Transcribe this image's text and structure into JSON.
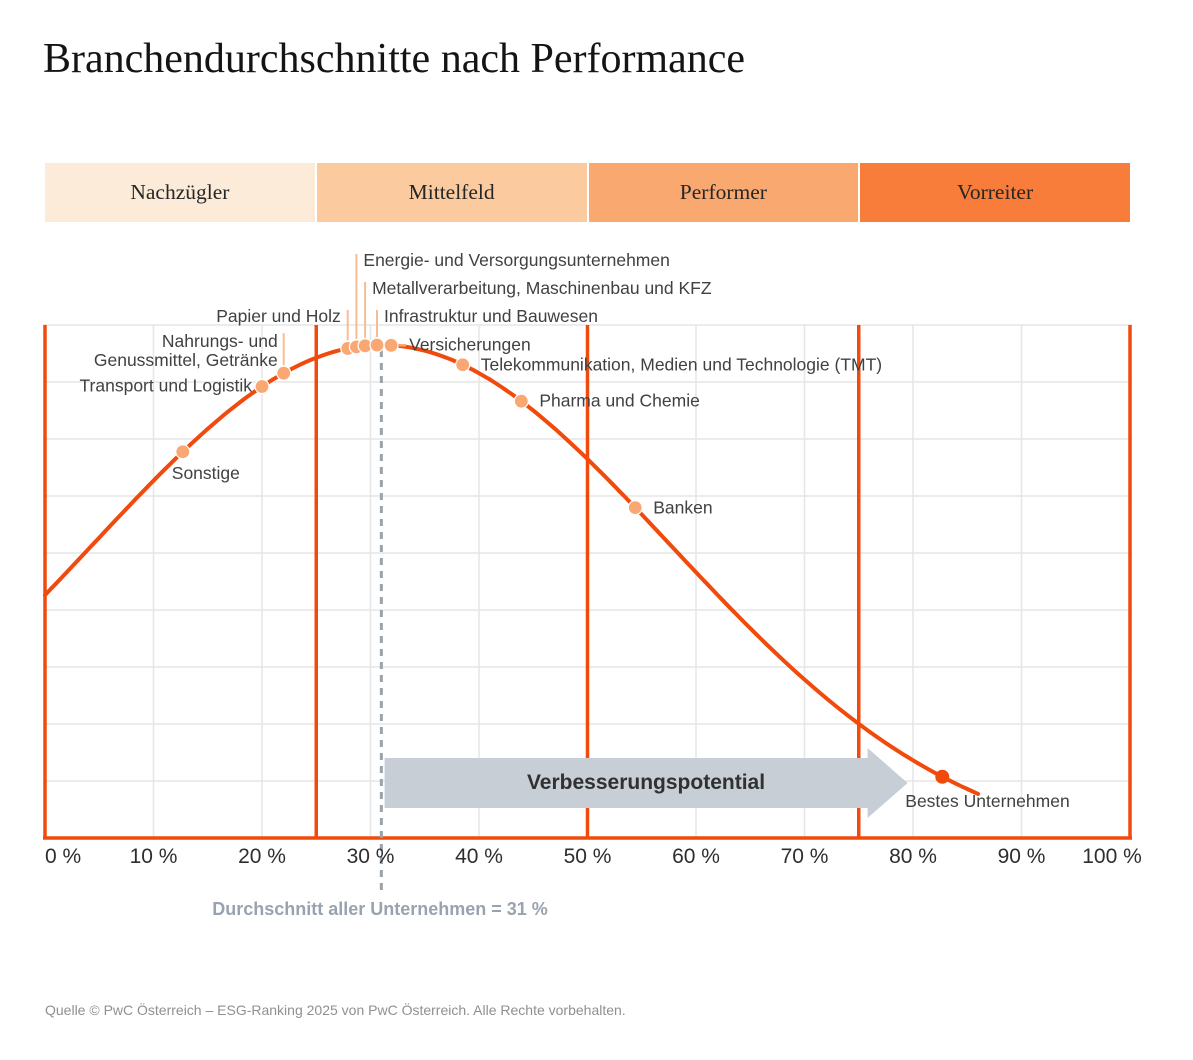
{
  "title": "Branchendurchschnitte nach Performance",
  "source": "Quelle © PwC Österreich – ESG-Ranking 2025 von PwC Österreich. Alle Rechte vorbehalten.",
  "bands": [
    {
      "label": "Nachzügler",
      "color": "#fdebd9",
      "from_pct": 0,
      "to_pct": 25
    },
    {
      "label": "Mittelfeld",
      "color": "#fbcb9f",
      "from_pct": 25,
      "to_pct": 50
    },
    {
      "label": "Performer",
      "color": "#f9a96f",
      "from_pct": 50,
      "to_pct": 75
    },
    {
      "label": "Vorreiter",
      "color": "#f87c3a",
      "from_pct": 75,
      "to_pct": 100
    }
  ],
  "colors": {
    "curve": "#f14a0d",
    "band_divider_lines": "#f14a0d",
    "point_fill": "#f9a873",
    "leader_line": "#f7bd92",
    "grid": "#e5e6e7",
    "average_dash": "#9aa2aa",
    "arrow_fill": "#c8ced5",
    "label_text": "#3f4142",
    "average_text": "#99a3af"
  },
  "chart_data": {
    "type": "scatter",
    "title": "Branchendurchschnitte nach Performance",
    "x_range_pct": [
      0,
      100
    ],
    "x_ticks": [
      "0 %",
      "10 %",
      "20 %",
      "30 %",
      "40 %",
      "50 %",
      "60 %",
      "70 %",
      "80 %",
      "90 %",
      "100 %"
    ],
    "grid": true,
    "divider_lines_pct": [
      0,
      25,
      50,
      75,
      100
    ],
    "curve": {
      "shape": "bell",
      "mean_pct": 31,
      "sigma_pct": 26.7,
      "x_start_pct": 0,
      "x_end_pct": 86.3
    },
    "industries": [
      {
        "label": "Sonstige",
        "value_pct": 12.7,
        "placement": "below-left"
      },
      {
        "label": "Transport und Logistik",
        "value_pct": 20.0,
        "placement": "left"
      },
      {
        "label": "Nahrungs- und Genussmittel, Getränke",
        "lines": [
          "Nahrungs- und",
          "Genussmittel, Getränke"
        ],
        "value_pct": 22.0,
        "placement": "left-stacked-leader"
      },
      {
        "label": "Papier und Holz",
        "value_pct": 27.9,
        "placement": "leader-left",
        "label_row": 3
      },
      {
        "label": "Energie- und Versorgungsunternehmen",
        "value_pct": 28.7,
        "placement": "leader-right",
        "label_row": 1
      },
      {
        "label": "Metallverarbeitung, Maschinenbau und KFZ",
        "value_pct": 29.5,
        "placement": "leader-right",
        "label_row": 2
      },
      {
        "label": "Infrastruktur und Bauwesen",
        "value_pct": 30.6,
        "placement": "leader-right",
        "label_row": 3
      },
      {
        "label": "Versicherungen",
        "value_pct": 31.9,
        "placement": "right-dash"
      },
      {
        "label": "Telekommunikation, Medien und Technologie (TMT)",
        "value_pct": 38.5,
        "placement": "right"
      },
      {
        "label": "Pharma und Chemie",
        "value_pct": 43.9,
        "placement": "right"
      },
      {
        "label": "Banken",
        "value_pct": 54.4,
        "placement": "right"
      },
      {
        "label": "Bestes Unternehmen",
        "value_pct": 82.7,
        "placement": "below-right",
        "highlight": true
      }
    ],
    "average_line": {
      "label": "Durchschnitt aller Unternehmen = 31 %",
      "value_pct": 31
    },
    "improvement_arrow": {
      "label": "Verbesserungspotential",
      "from_pct": 31.3,
      "to_pct": 79.5
    }
  }
}
